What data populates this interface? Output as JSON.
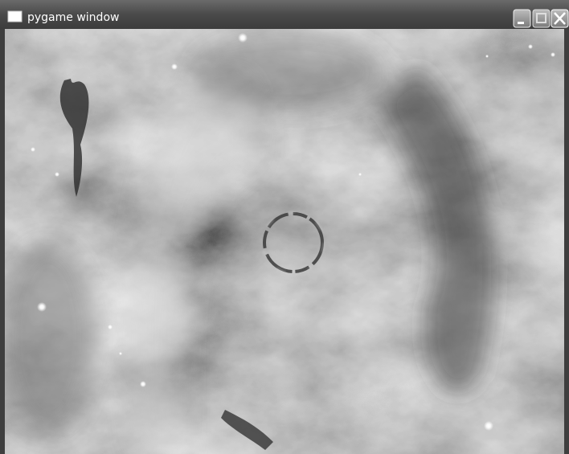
{
  "window": {
    "title": "pygame window"
  }
}
